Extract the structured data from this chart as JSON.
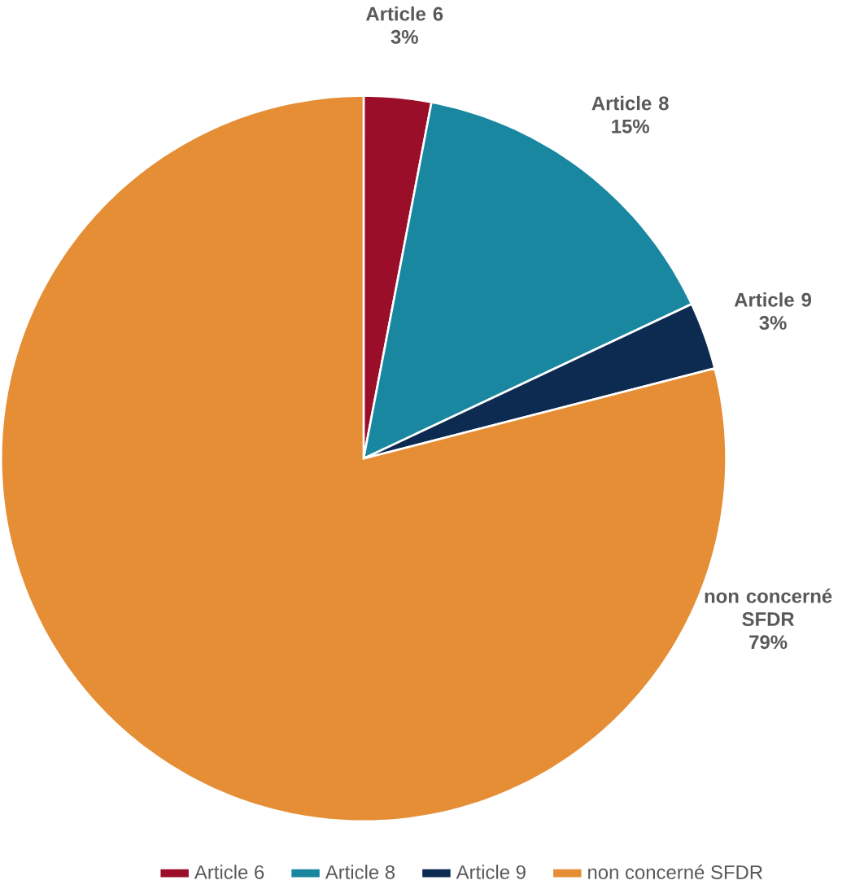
{
  "chart_data": {
    "type": "pie",
    "categories": [
      "Article 6",
      "Article 8",
      "Article 9",
      "non concerné SFDR"
    ],
    "values": [
      3,
      15,
      3,
      79
    ],
    "value_labels": [
      "3%",
      "15%",
      "3%",
      "79%"
    ],
    "colors": [
      "#9b0e2a",
      "#1a87a0",
      "#0d2a50",
      "#e58e35"
    ],
    "legend": "bottom"
  }
}
